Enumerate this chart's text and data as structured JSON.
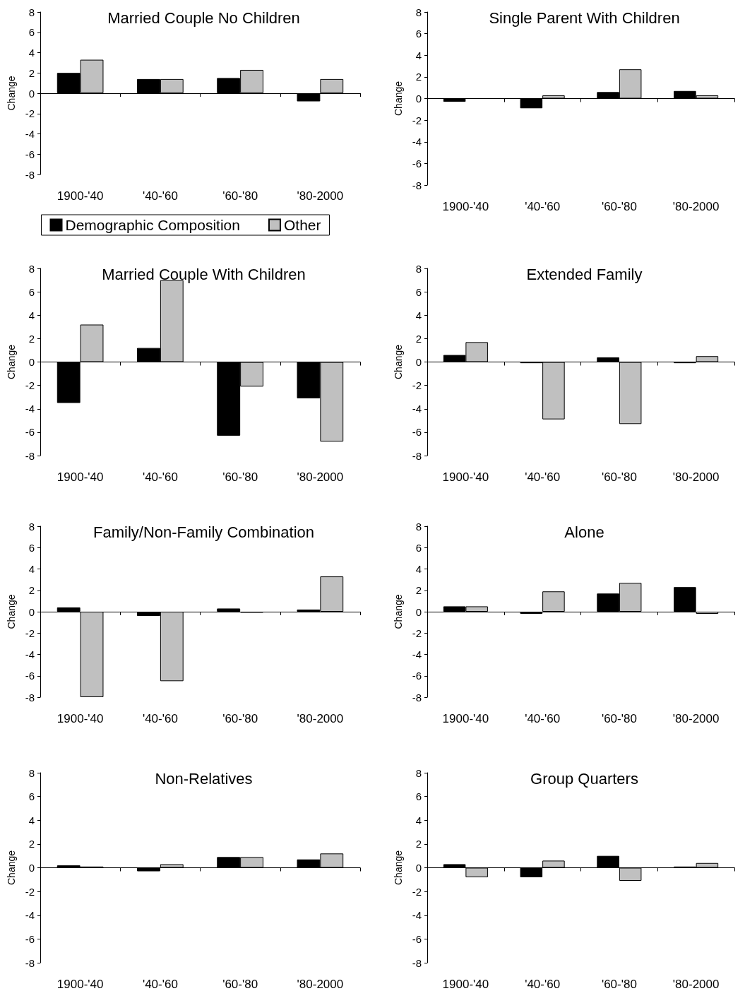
{
  "chart_data": [
    {
      "type": "bar",
      "title": "Married Couple No Children",
      "ylabel": "Change",
      "categories": [
        "1900-'40",
        "'40-'60",
        "'60-'80",
        "'80-2000"
      ],
      "ylim": [
        -8,
        8
      ],
      "yticks": [
        -8,
        -6,
        -4,
        -2,
        0,
        2,
        4,
        6,
        8
      ],
      "legend": "bottom",
      "series": [
        {
          "name": "Demographic Composition",
          "color": "#000000",
          "values": [
            2.0,
            1.4,
            1.5,
            -0.8
          ]
        },
        {
          "name": "Other",
          "color": "#c0c0c0",
          "values": [
            3.3,
            1.4,
            2.3,
            1.4
          ]
        }
      ]
    },
    {
      "type": "bar",
      "title": "Single Parent With Children",
      "ylabel": "Change",
      "categories": [
        "1900-'40",
        "'40-'60",
        "'60-'80",
        "'80-2000"
      ],
      "ylim": [
        -8,
        8
      ],
      "yticks": [
        -8,
        -6,
        -4,
        -2,
        0,
        2,
        4,
        6,
        8
      ],
      "legend": false,
      "series": [
        {
          "color": "#000000",
          "values": [
            -0.3,
            -0.9,
            0.6,
            0.7
          ]
        },
        {
          "color": "#c0c0c0",
          "values": [
            null,
            0.3,
            2.7,
            0.3
          ]
        }
      ]
    },
    {
      "type": "bar",
      "title": "Married Couple With Children",
      "ylabel": "Change",
      "categories": [
        "1900-'40",
        "'40-'60",
        "'60-'80",
        "'80-2000"
      ],
      "ylim": [
        -8,
        8
      ],
      "yticks": [
        -8,
        -6,
        -4,
        -2,
        0,
        2,
        4,
        6,
        8
      ],
      "legend": false,
      "series": [
        {
          "color": "#000000",
          "values": [
            -3.5,
            1.2,
            -6.3,
            -3.1
          ]
        },
        {
          "color": "#c0c0c0",
          "values": [
            3.2,
            7.0,
            -2.1,
            -6.8
          ]
        }
      ]
    },
    {
      "type": "bar",
      "title": "Extended Family",
      "ylabel": "Change",
      "categories": [
        "1900-'40",
        "'40-'60",
        "'60-'80",
        "'80-2000"
      ],
      "ylim": [
        -8,
        8
      ],
      "yticks": [
        -8,
        -6,
        -4,
        -2,
        0,
        2,
        4,
        6,
        8
      ],
      "legend": false,
      "series": [
        {
          "color": "#000000",
          "values": [
            0.6,
            -0.1,
            0.4,
            -0.1
          ]
        },
        {
          "color": "#c0c0c0",
          "values": [
            1.7,
            -4.9,
            -5.3,
            0.5
          ]
        }
      ]
    },
    {
      "type": "bar",
      "title": "Family/Non-Family Combination",
      "ylabel": "Change",
      "categories": [
        "1900-'40",
        "'40-'60",
        "'60-'80",
        "'80-2000"
      ],
      "ylim": [
        -8,
        8
      ],
      "yticks": [
        -8,
        -6,
        -4,
        -2,
        0,
        2,
        4,
        6,
        8
      ],
      "legend": false,
      "series": [
        {
          "color": "#000000",
          "values": [
            0.4,
            -0.4,
            0.3,
            0.2
          ]
        },
        {
          "color": "#c0c0c0",
          "values": [
            -8.0,
            -6.5,
            -0.1,
            3.3
          ]
        }
      ]
    },
    {
      "type": "bar",
      "title": "Alone",
      "ylabel": "Change",
      "categories": [
        "1900-'40",
        "'40-'60",
        "'60-'80",
        "'80-2000"
      ],
      "ylim": [
        -8,
        8
      ],
      "yticks": [
        -8,
        -6,
        -4,
        -2,
        0,
        2,
        4,
        6,
        8
      ],
      "legend": false,
      "series": [
        {
          "color": "#000000",
          "values": [
            0.5,
            -0.2,
            1.7,
            2.3
          ]
        },
        {
          "color": "#c0c0c0",
          "values": [
            0.5,
            1.9,
            2.7,
            -0.2
          ]
        }
      ]
    },
    {
      "type": "bar",
      "title": "Non-Relatives",
      "ylabel": "Change",
      "categories": [
        "1900-'40",
        "'40-'60",
        "'60-'80",
        "'80-2000"
      ],
      "ylim": [
        -8,
        8
      ],
      "yticks": [
        -8,
        -6,
        -4,
        -2,
        0,
        2,
        4,
        6,
        8
      ],
      "legend": false,
      "series": [
        {
          "color": "#000000",
          "values": [
            0.2,
            -0.3,
            0.9,
            0.7
          ]
        },
        {
          "color": "#c0c0c0",
          "values": [
            0.1,
            0.3,
            0.9,
            1.2
          ]
        }
      ]
    },
    {
      "type": "bar",
      "title": "Group Quarters",
      "ylabel": "Change",
      "categories": [
        "1900-'40",
        "'40-'60",
        "'60-'80",
        "'80-2000"
      ],
      "ylim": [
        -8,
        8
      ],
      "yticks": [
        -8,
        -6,
        -4,
        -2,
        0,
        2,
        4,
        6,
        8
      ],
      "legend": false,
      "series": [
        {
          "color": "#000000",
          "values": [
            0.3,
            -0.8,
            1.0,
            0.1
          ]
        },
        {
          "color": "#c0c0c0",
          "values": [
            -0.8,
            0.6,
            -1.1,
            0.4
          ]
        }
      ]
    }
  ]
}
